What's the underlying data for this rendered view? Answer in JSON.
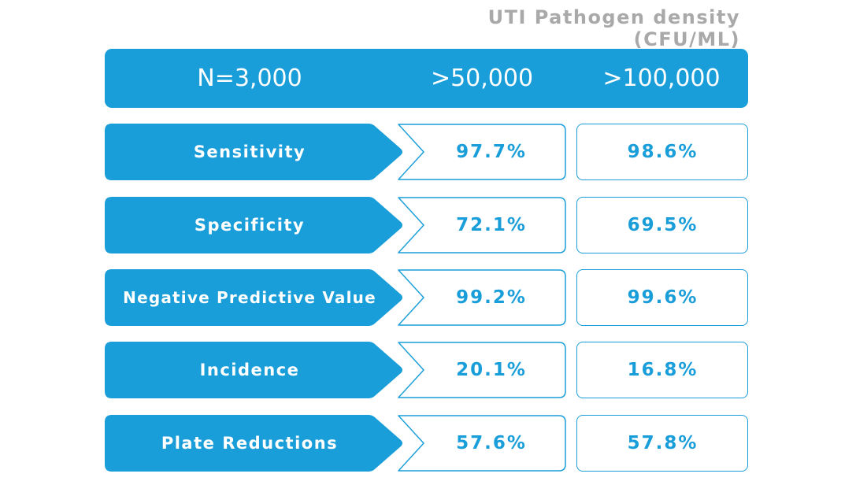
{
  "subtitle": "UTI Pathogen density (CFU/ML)",
  "header": {
    "n_label": "N=3,000",
    "col1": ">50,000",
    "col2": ">100,000"
  },
  "rows": [
    {
      "label": "Sensitivity",
      "v1": "97.7%",
      "v2": "98.6%"
    },
    {
      "label": "Specificity",
      "v1": "72.1%",
      "v2": "69.5%"
    },
    {
      "label": "Negative Predictive Value",
      "v1": "99.2%",
      "v2": "99.6%"
    },
    {
      "label": "Incidence",
      "v1": "20.1%",
      "v2": "16.8%"
    },
    {
      "label": "Plate Reductions",
      "v1": "57.6%",
      "v2": "57.8%"
    }
  ],
  "colors": {
    "accent": "#1a9ed9",
    "subtitle": "#a9a9a9"
  }
}
